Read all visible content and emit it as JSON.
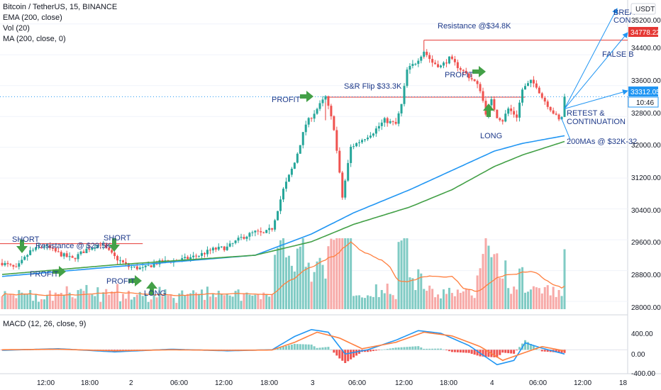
{
  "header": {
    "symbol_line": "Bitcoin / TetherUS, 15, BINANCE",
    "indicators": [
      "EMA (200, close)",
      "Vol (20)",
      "MA (200, close, 0)"
    ],
    "macd_label": "MACD (12, 26, close, 9)",
    "currency": "USDT"
  },
  "colors": {
    "up": "#26a69a",
    "down": "#ef5350",
    "ema": "#2196f3",
    "ma": "#43a047",
    "resistance_line": "#e53935",
    "annotation_text": "#1e3a8a",
    "arrow": "#43a047"
  },
  "price_axis": {
    "ticks": [
      "35200.00",
      "34400.00",
      "33600.00",
      "32800.00",
      "32000.00",
      "31200.00",
      "30400.00",
      "29600.00",
      "28800.00",
      "28000.00"
    ],
    "last_price_label": "33312.05",
    "countdown_label": "10:46",
    "resistance_label": "34778.22"
  },
  "macd_axis": {
    "ticks": [
      "400.00",
      "0.00",
      "-400.00"
    ]
  },
  "time_axis": {
    "ticks": [
      "12:00",
      "18:00",
      "2",
      "06:00",
      "12:00",
      "18:00",
      "3",
      "06:00",
      "12:00",
      "18:00",
      "4",
      "06:00",
      "12:00",
      "18"
    ]
  },
  "annotations": {
    "short1": "SHORT",
    "short2": "SHORT",
    "resistance_29_5": "Resistance @ $29.5K",
    "profit1": "PROFIT",
    "profit2": "PROFIT",
    "long1": "LONG",
    "profit3": "PROFIT",
    "sr_flip": "S&R Flip $33.3K",
    "resistance_34_8": "Resistance @$34.8K",
    "profit4": "PROFIT",
    "long2": "LONG",
    "retest1": "RETEST &",
    "retest2": "CONTINUATION",
    "ma_note": "200MAs @ $32K-32.",
    "false_b": "FALSE B",
    "brea": "BREA",
    "con": "CON"
  },
  "chart_data": {
    "type": "candlestick",
    "price_range": [
      27800,
      35600
    ],
    "levels": {
      "last_price": 33312.05,
      "resistance_high": 34778.22,
      "resistance_29_5k": 29500,
      "sr_flip_33_3k": 33300
    },
    "price_keypoints": [
      [
        0,
        29000
      ],
      [
        5,
        28850
      ],
      [
        10,
        29300
      ],
      [
        15,
        29450
      ],
      [
        20,
        29250
      ],
      [
        25,
        29100
      ],
      [
        30,
        29350
      ],
      [
        35,
        29500
      ],
      [
        40,
        29150
      ],
      [
        45,
        28900
      ],
      [
        50,
        28850
      ],
      [
        55,
        29000
      ],
      [
        60,
        29050
      ],
      [
        65,
        29100
      ],
      [
        70,
        29200
      ],
      [
        75,
        29350
      ],
      [
        80,
        29400
      ],
      [
        85,
        29650
      ],
      [
        90,
        29800
      ],
      [
        93,
        29750
      ],
      [
        96,
        29900
      ],
      [
        100,
        30900
      ],
      [
        104,
        31600
      ],
      [
        108,
        32600
      ],
      [
        112,
        33000
      ],
      [
        115,
        33300
      ],
      [
        118,
        32500
      ],
      [
        121,
        30700
      ],
      [
        124,
        32000
      ],
      [
        128,
        32200
      ],
      [
        132,
        32400
      ],
      [
        136,
        32700
      ],
      [
        140,
        32600
      ],
      [
        142,
        33100
      ],
      [
        144,
        34000
      ],
      [
        147,
        34200
      ],
      [
        150,
        34500
      ],
      [
        153,
        34200
      ],
      [
        156,
        34100
      ],
      [
        159,
        34300
      ],
      [
        162,
        34100
      ],
      [
        165,
        33900
      ],
      [
        168,
        33700
      ],
      [
        170,
        33500
      ],
      [
        172,
        32900
      ],
      [
        174,
        33200
      ],
      [
        176,
        32800
      ],
      [
        178,
        32700
      ],
      [
        180,
        33000
      ],
      [
        183,
        32800
      ],
      [
        185,
        33500
      ],
      [
        188,
        33700
      ],
      [
        190,
        33600
      ],
      [
        192,
        33300
      ],
      [
        194,
        33100
      ],
      [
        196,
        32900
      ],
      [
        198,
        32700
      ],
      [
        199,
        32800
      ],
      [
        200,
        33300
      ]
    ],
    "ema200_keypoints": [
      [
        0,
        28650
      ],
      [
        40,
        28900
      ],
      [
        90,
        29200
      ],
      [
        110,
        29750
      ],
      [
        125,
        30300
      ],
      [
        145,
        30900
      ],
      [
        160,
        31400
      ],
      [
        175,
        31900
      ],
      [
        185,
        32100
      ],
      [
        200,
        32300
      ]
    ],
    "ma200_keypoints": [
      [
        0,
        28700
      ],
      [
        40,
        28950
      ],
      [
        90,
        29200
      ],
      [
        110,
        29550
      ],
      [
        125,
        30000
      ],
      [
        145,
        30450
      ],
      [
        160,
        30900
      ],
      [
        175,
        31500
      ],
      [
        185,
        31800
      ],
      [
        200,
        32150
      ]
    ],
    "volume_note": "volume histogram with 20-period moving average",
    "macd_range": [
      -450,
      550
    ],
    "macd_keypoints": [
      [
        0,
        -10
      ],
      [
        20,
        20
      ],
      [
        40,
        -40
      ],
      [
        60,
        10
      ],
      [
        80,
        -20
      ],
      [
        96,
        0
      ],
      [
        104,
        250
      ],
      [
        110,
        380
      ],
      [
        116,
        330
      ],
      [
        122,
        -80
      ],
      [
        130,
        0
      ],
      [
        140,
        180
      ],
      [
        148,
        360
      ],
      [
        156,
        310
      ],
      [
        166,
        80
      ],
      [
        176,
        -280
      ],
      [
        182,
        -200
      ],
      [
        186,
        130
      ],
      [
        192,
        30
      ],
      [
        200,
        -80
      ]
    ],
    "signal_keypoints": [
      [
        0,
        0
      ],
      [
        20,
        10
      ],
      [
        40,
        -20
      ],
      [
        60,
        0
      ],
      [
        80,
        -10
      ],
      [
        96,
        -5
      ],
      [
        104,
        140
      ],
      [
        112,
        330
      ],
      [
        120,
        220
      ],
      [
        128,
        20
      ],
      [
        140,
        140
      ],
      [
        150,
        330
      ],
      [
        160,
        260
      ],
      [
        170,
        60
      ],
      [
        178,
        -200
      ],
      [
        186,
        -50
      ],
      [
        192,
        60
      ],
      [
        200,
        -20
      ]
    ]
  }
}
